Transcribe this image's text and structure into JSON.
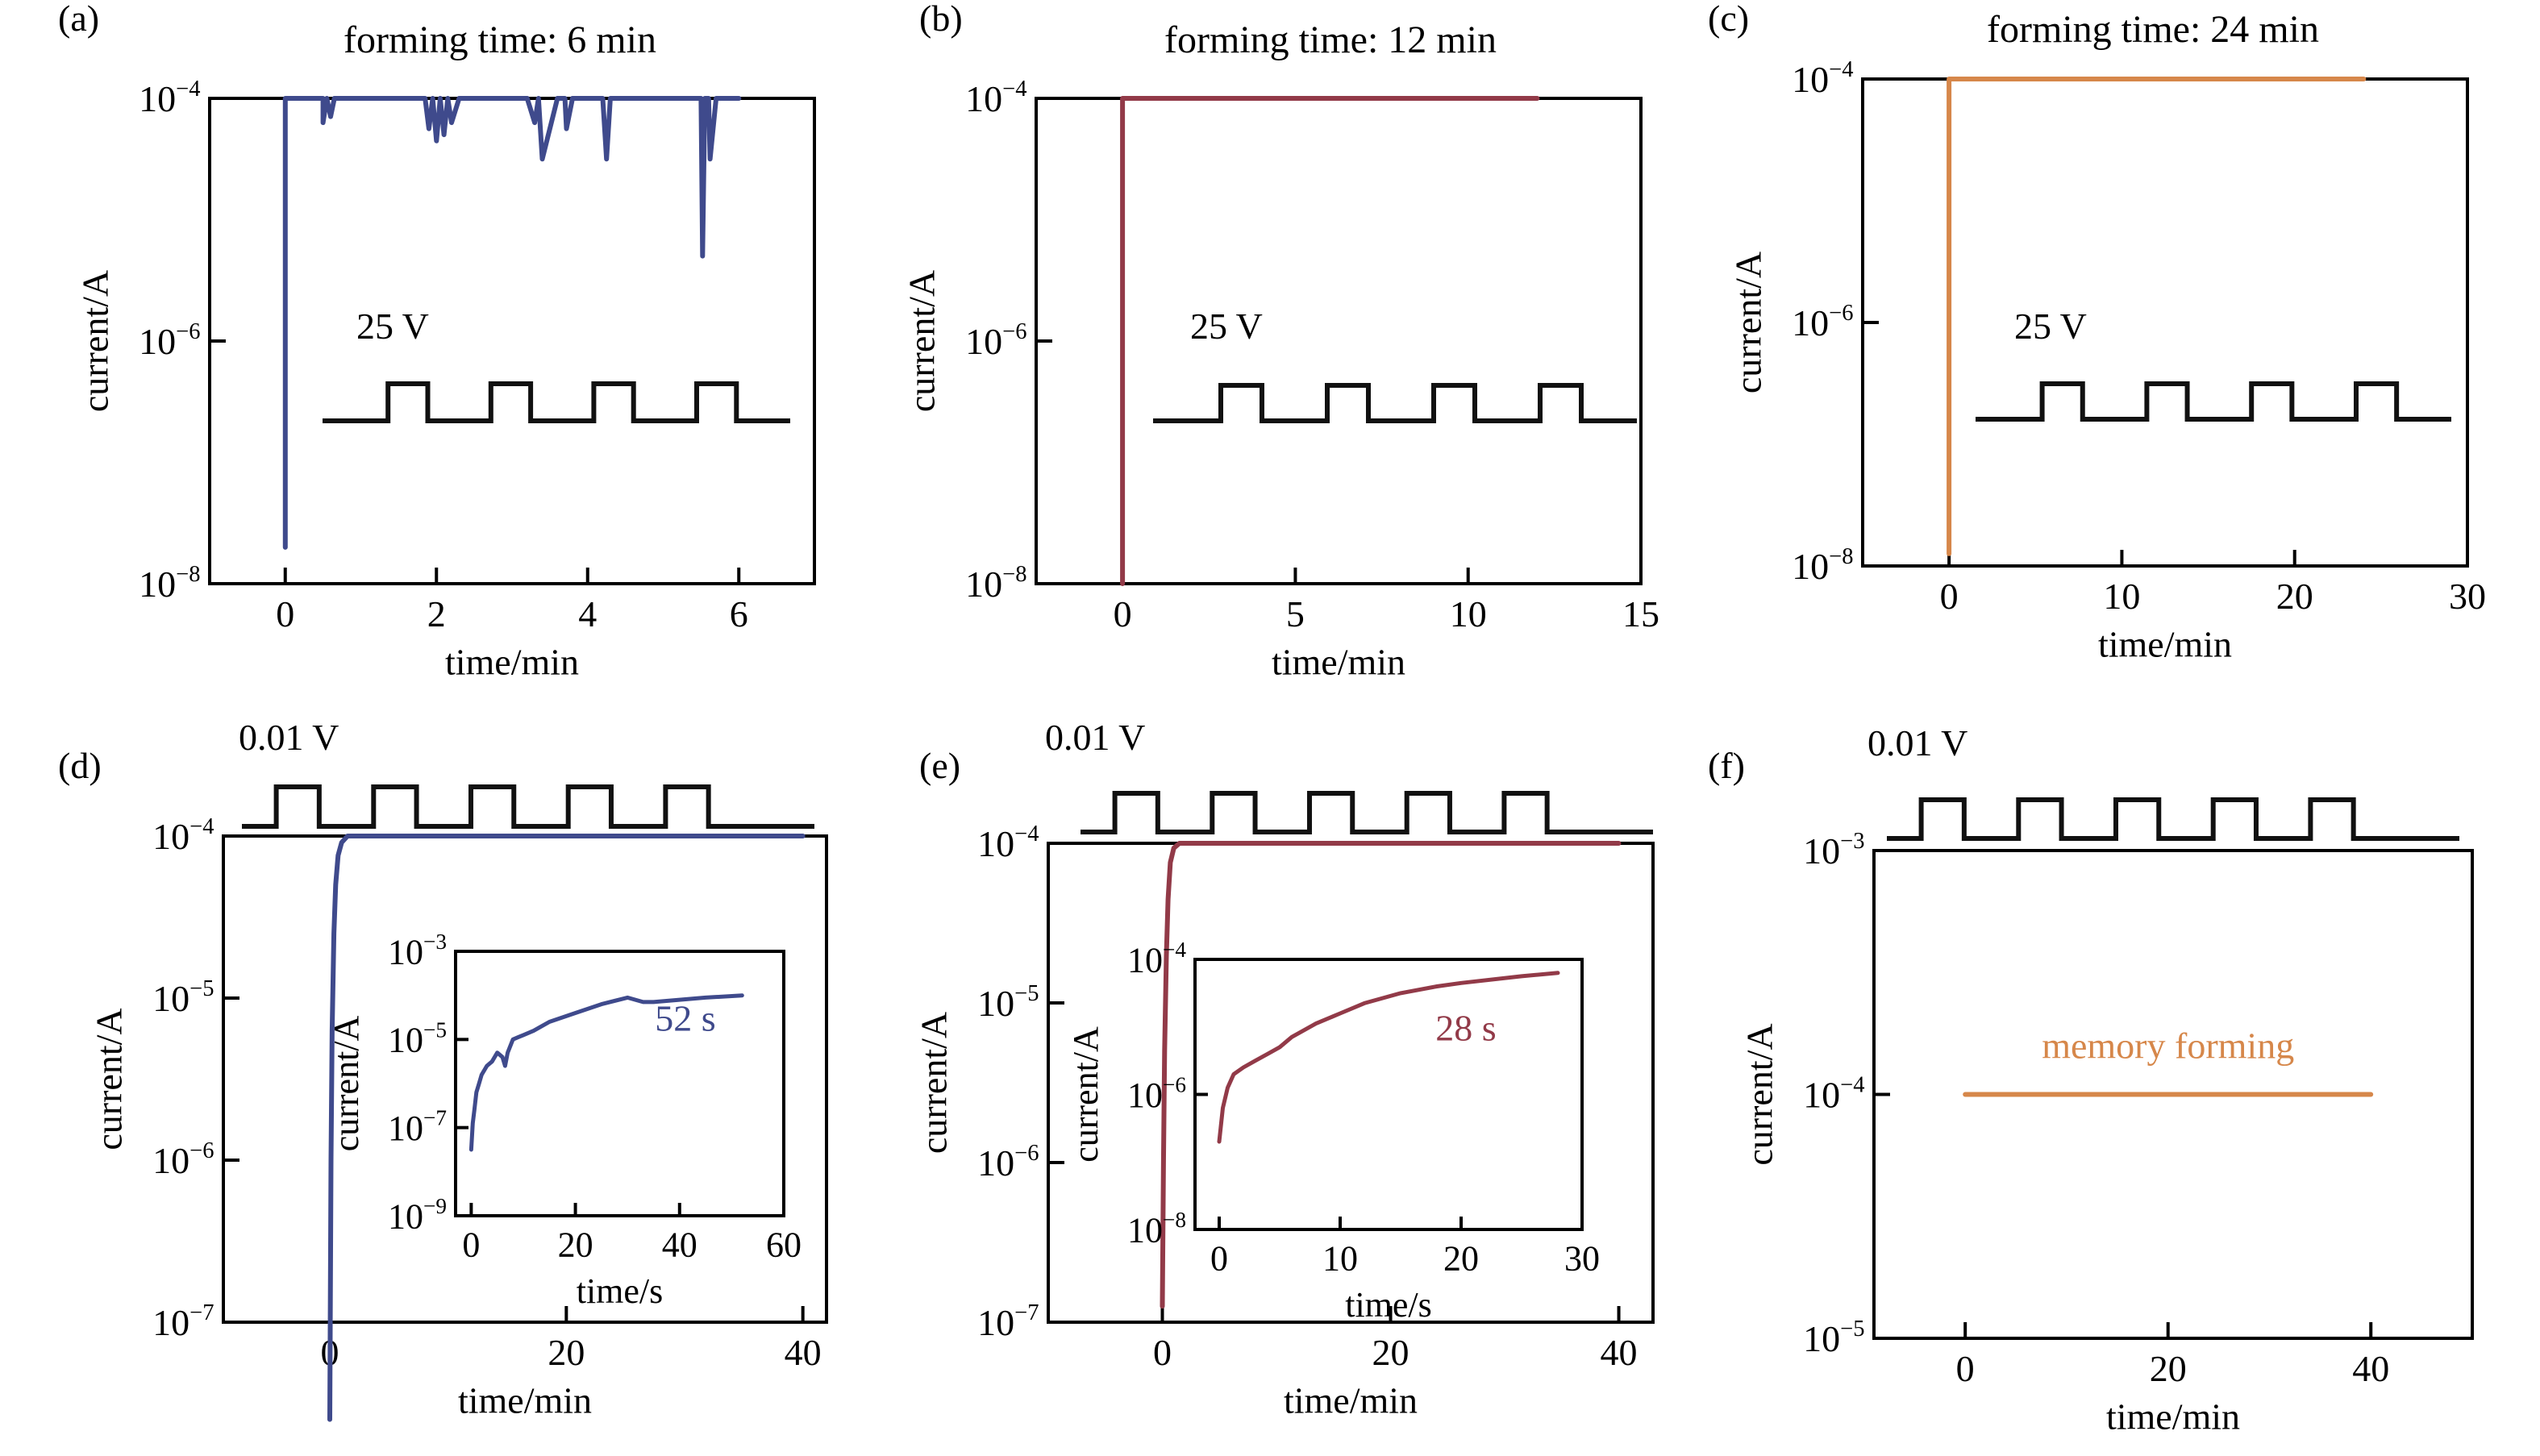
{
  "colors": {
    "blue": "#3f4a8c",
    "red": "#923a48",
    "orange": "#d6874a",
    "pulse": "#111111"
  },
  "chart_data": [
    {
      "panel": "(a)",
      "type": "line",
      "title": "forming time: 6 min",
      "xlabel": "time/min",
      "ylabel": "current/A",
      "xlim": [
        -1,
        7
      ],
      "x_ticks": [
        0,
        2,
        4,
        6
      ],
      "y_scale": "log",
      "y_exponents": [
        -8,
        -4
      ],
      "y_ticks": [
        -8,
        -6,
        -4
      ],
      "color": "blue",
      "pulse_label": "25 V",
      "series": [
        {
          "x": [
            0.0,
            0.0,
            0.03,
            0.5,
            0.5,
            0.55,
            0.6,
            0.65,
            1.0,
            1.5,
            1.85,
            1.9,
            1.95,
            2.0,
            2.05,
            2.1,
            2.15,
            2.2,
            2.3,
            2.5,
            3.0,
            3.2,
            3.3,
            3.35,
            3.4,
            3.6,
            3.7,
            3.72,
            3.8,
            3.9,
            4.2,
            4.25,
            4.3,
            5.0,
            5.5,
            5.52,
            5.55,
            5.6,
            5.62,
            5.7,
            6.0
          ],
          "y": [
            -7.7,
            -4.0,
            -4.0,
            -4.0,
            -4.2,
            -4.0,
            -4.15,
            -4.0,
            -4.0,
            -4.0,
            -4.0,
            -4.25,
            -4.0,
            -4.35,
            -4.0,
            -4.3,
            -4.0,
            -4.2,
            -4.0,
            -4.0,
            -4.0,
            -4.0,
            -4.2,
            -4.0,
            -4.5,
            -4.0,
            -4.0,
            -4.25,
            -4.0,
            -4.0,
            -4.0,
            -4.5,
            -4.0,
            -4.0,
            -4.0,
            -5.3,
            -4.0,
            -4.0,
            -4.5,
            -4.0,
            -4.0
          ]
        }
      ]
    },
    {
      "panel": "(b)",
      "type": "line",
      "title": "forming time: 12 min",
      "xlabel": "time/min",
      "ylabel": "current/A",
      "xlim": [
        -2.5,
        15
      ],
      "x_ticks": [
        0,
        5,
        10,
        15
      ],
      "y_scale": "log",
      "y_exponents": [
        -8,
        -4
      ],
      "y_ticks": [
        -8,
        -6,
        -4
      ],
      "color": "red",
      "pulse_label": "25 V",
      "series": [
        {
          "x": [
            0.0,
            0.0,
            12.0
          ],
          "y": [
            -8.0,
            -4.0,
            -4.0
          ]
        }
      ]
    },
    {
      "panel": "(c)",
      "type": "line",
      "title": "forming time: 24 min",
      "xlabel": "time/min",
      "ylabel": "current/A",
      "xlim": [
        -5,
        30
      ],
      "x_ticks": [
        0,
        10,
        20,
        30
      ],
      "y_scale": "log",
      "y_exponents": [
        -8,
        -4
      ],
      "y_ticks": [
        -8,
        -6,
        -4
      ],
      "color": "orange",
      "pulse_label": "25 V",
      "series": [
        {
          "x": [
            0.0,
            0.0,
            24.0
          ],
          "y": [
            -7.9,
            -4.0,
            -4.0
          ]
        }
      ]
    },
    {
      "panel": "(d)",
      "type": "line",
      "xlabel": "time/min",
      "ylabel": "current/A",
      "xlim": [
        -9,
        42
      ],
      "x_ticks": [
        0,
        20,
        40
      ],
      "y_scale": "log",
      "y_exponents": [
        -7,
        -4
      ],
      "y_ticks": [
        -7,
        -6,
        -5,
        -4
      ],
      "color": "blue",
      "pulse_label": "0.01 V",
      "series": [
        {
          "x": [
            0.0,
            0.1,
            0.2,
            0.35,
            0.5,
            0.7,
            1.0,
            1.5,
            40.0
          ],
          "y": [
            -7.6,
            -6.0,
            -5.2,
            -4.6,
            -4.3,
            -4.12,
            -4.04,
            -4.0,
            -4.0
          ]
        }
      ],
      "inset": {
        "xlabel": "time/s",
        "ylabel": "current/A",
        "xlim": [
          -3,
          60
        ],
        "x_ticks": [
          0,
          20,
          40,
          60
        ],
        "y_scale": "log",
        "y_exponents": [
          -9,
          -3
        ],
        "y_ticks": [
          -9,
          -7,
          -5,
          -3
        ],
        "annotation": "52 s",
        "series": [
          {
            "x": [
              0.0,
              0.3,
              0.6,
              1.0,
              1.5,
              2.0,
              3.0,
              4.0,
              5.0,
              6.0,
              6.5,
              7.0,
              8.0,
              9.0,
              10.0,
              12.0,
              15.0,
              20.0,
              25.0,
              30.0,
              33.0,
              35.0,
              40.0,
              45.0,
              52.0
            ],
            "y": [
              -7.5,
              -6.9,
              -6.6,
              -6.2,
              -6.0,
              -5.8,
              -5.6,
              -5.5,
              -5.3,
              -5.4,
              -5.6,
              -5.3,
              -5.0,
              -4.95,
              -4.9,
              -4.8,
              -4.6,
              -4.4,
              -4.2,
              -4.05,
              -4.15,
              -4.15,
              -4.1,
              -4.05,
              -4.0
            ]
          }
        ]
      }
    },
    {
      "panel": "(e)",
      "type": "line",
      "xlabel": "time/min",
      "ylabel": "current/A",
      "xlim": [
        -10,
        43
      ],
      "x_ticks": [
        0,
        20,
        40
      ],
      "y_scale": "log",
      "y_exponents": [
        -7,
        -4
      ],
      "y_ticks": [
        -7,
        -6,
        -5,
        -4
      ],
      "color": "red",
      "pulse_label": "0.01 V",
      "series": [
        {
          "x": [
            0.0,
            0.1,
            0.2,
            0.35,
            0.5,
            0.7,
            1.0,
            1.5,
            40.0
          ],
          "y": [
            -6.9,
            -6.0,
            -5.3,
            -4.7,
            -4.35,
            -4.12,
            -4.03,
            -4.0,
            -4.0
          ]
        }
      ],
      "inset": {
        "xlabel": "time/s",
        "ylabel": "current/A",
        "xlim": [
          -2,
          30
        ],
        "x_ticks": [
          0,
          10,
          20,
          30
        ],
        "y_scale": "log",
        "y_exponents": [
          -8,
          -4
        ],
        "y_ticks": [
          -8,
          -6,
          -4
        ],
        "annotation": "28 s",
        "series": [
          {
            "x": [
              0.0,
              0.3,
              0.7,
              1.2,
              2.0,
              3.0,
              4.0,
              5.0,
              6.0,
              8.0,
              10.0,
              12.0,
              15.0,
              18.0,
              20.0,
              25.0,
              28.0
            ],
            "y": [
              -6.7,
              -6.2,
              -5.9,
              -5.7,
              -5.6,
              -5.5,
              -5.4,
              -5.3,
              -5.15,
              -4.95,
              -4.8,
              -4.65,
              -4.5,
              -4.4,
              -4.35,
              -4.25,
              -4.2
            ]
          }
        ]
      }
    },
    {
      "panel": "(f)",
      "type": "line",
      "xlabel": "time/min",
      "ylabel": "current/A",
      "xlim": [
        -9,
        50
      ],
      "x_ticks": [
        0,
        20,
        40
      ],
      "y_scale": "log",
      "y_exponents": [
        -5,
        -3
      ],
      "y_ticks": [
        -5,
        -4,
        -3
      ],
      "color": "orange",
      "pulse_label": "0.01 V",
      "annotation": "memory forming",
      "series": [
        {
          "x": [
            0.0,
            40.0
          ],
          "y": [
            -4.0,
            -4.0
          ]
        }
      ]
    }
  ]
}
